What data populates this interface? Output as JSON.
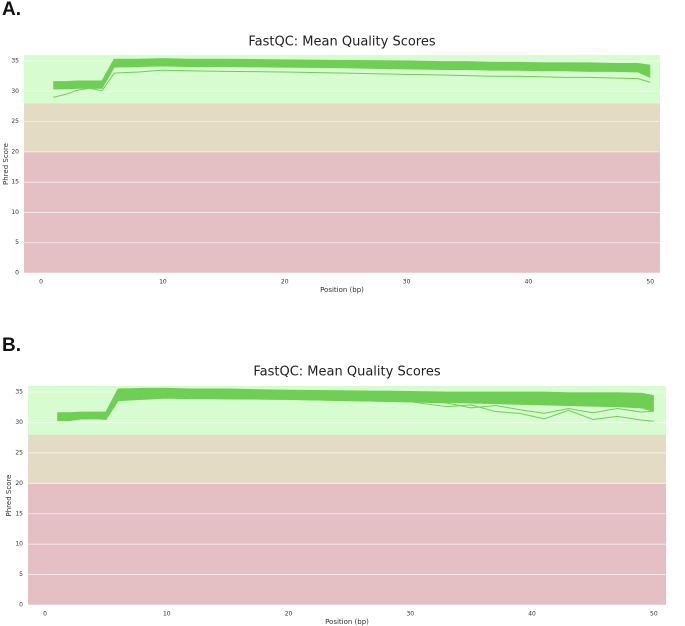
{
  "chart_data": [
    {
      "type": "line",
      "panel_label": "A.",
      "title": "FastQC: Mean Quality Scores",
      "xlabel": "Position (bp)",
      "ylabel": "Phred Score",
      "xlim": [
        -1.4,
        50.8
      ],
      "ylim": [
        0,
        36
      ],
      "xticks": [
        0,
        10,
        20,
        30,
        40,
        50
      ],
      "yticks": [
        0,
        5,
        10,
        15,
        20,
        25,
        30,
        35
      ],
      "grid": true,
      "zones": [
        {
          "from": 0,
          "to": 20,
          "color": "#e4c0c5"
        },
        {
          "from": 20,
          "to": 28,
          "color": "#e3dbc4"
        },
        {
          "from": 28,
          "to": 36,
          "color": "#d6fcd0"
        }
      ],
      "band": [
        0,
        1
      ],
      "x": [
        1,
        2,
        3,
        4,
        5,
        6,
        8,
        10,
        12,
        15,
        20,
        25,
        30,
        33,
        35,
        37,
        39,
        41,
        43,
        45,
        47,
        49,
        50
      ],
      "series": [
        {
          "color": "#6fcf55",
          "values": [
            31.6,
            31.6,
            31.7,
            31.7,
            31.7,
            35.3,
            35.3,
            35.4,
            35.3,
            35.3,
            35.2,
            35.1,
            35.0,
            34.9,
            34.9,
            34.8,
            34.8,
            34.7,
            34.7,
            34.7,
            34.6,
            34.6,
            34.3
          ]
        },
        {
          "color": "#6fcf55",
          "values": [
            30.4,
            30.4,
            30.5,
            30.5,
            30.5,
            34.0,
            34.1,
            34.2,
            34.1,
            34.1,
            34.0,
            33.9,
            33.7,
            33.6,
            33.6,
            33.5,
            33.5,
            33.4,
            33.4,
            33.3,
            33.3,
            33.2,
            32.3
          ]
        },
        {
          "color": "#6fcf55",
          "values": [
            29.0,
            29.5,
            30.2,
            30.5,
            30.1,
            33.0,
            33.2,
            33.5,
            33.4,
            33.3,
            33.2,
            33.0,
            32.8,
            32.7,
            32.6,
            32.5,
            32.5,
            32.4,
            32.3,
            32.3,
            32.2,
            32.1,
            31.5
          ]
        }
      ]
    },
    {
      "type": "line",
      "panel_label": "B.",
      "title": "FastQC: Mean Quality Scores",
      "xlabel": "Position (bp)",
      "ylabel": "Phred Score",
      "xlim": [
        -1.4,
        51.0
      ],
      "ylim": [
        0,
        36
      ],
      "xticks": [
        0,
        10,
        20,
        30,
        40,
        50
      ],
      "yticks": [
        0,
        5,
        10,
        15,
        20,
        25,
        30,
        35
      ],
      "grid": true,
      "zones": [
        {
          "from": 0,
          "to": 20,
          "color": "#e4c0c5"
        },
        {
          "from": 20,
          "to": 28,
          "color": "#e3dbc4"
        },
        {
          "from": 28,
          "to": 36,
          "color": "#d6fcd0"
        }
      ],
      "band": [
        0,
        1
      ],
      "x": [
        1,
        2,
        3,
        4,
        5,
        6,
        8,
        10,
        12,
        15,
        20,
        25,
        30,
        33,
        35,
        37,
        39,
        41,
        43,
        45,
        47,
        49,
        50
      ],
      "series": [
        {
          "color": "#6fcf55",
          "values": [
            31.6,
            31.6,
            31.7,
            31.7,
            31.7,
            35.5,
            35.6,
            35.6,
            35.5,
            35.5,
            35.3,
            35.2,
            35.1,
            35.0,
            35.0,
            35.0,
            35.0,
            35.0,
            34.9,
            34.9,
            34.9,
            34.8,
            34.4
          ]
        },
        {
          "color": "#6fcf55",
          "values": [
            30.5,
            30.5,
            30.6,
            30.6,
            30.6,
            33.8,
            34.0,
            34.1,
            34.0,
            33.9,
            33.9,
            33.7,
            33.5,
            33.3,
            33.2,
            33.1,
            33.0,
            32.9,
            32.8,
            32.7,
            32.6,
            32.4,
            31.8
          ]
        },
        {
          "color": "#6fcf55",
          "values": [
            30.3,
            30.3,
            30.6,
            30.8,
            30.5,
            33.6,
            33.8,
            34.0,
            33.9,
            33.9,
            33.8,
            33.6,
            33.4,
            32.6,
            32.9,
            31.8,
            31.5,
            30.6,
            32.0,
            30.5,
            31.0,
            30.4,
            30.2
          ]
        },
        {
          "color": "#6fcf55",
          "values": [
            30.4,
            30.4,
            30.6,
            30.7,
            30.5,
            33.7,
            33.9,
            34.1,
            34.0,
            33.9,
            33.8,
            33.6,
            33.4,
            33.2,
            32.4,
            32.8,
            32.1,
            31.5,
            32.3,
            31.6,
            32.3,
            31.7,
            31.9
          ]
        }
      ]
    }
  ]
}
